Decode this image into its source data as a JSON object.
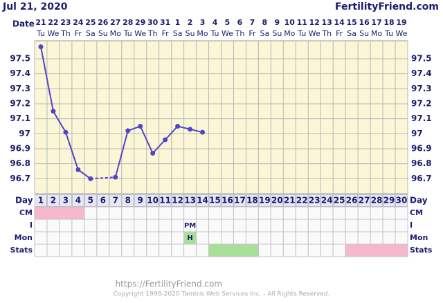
{
  "header": {
    "date": "Jul 21, 2020",
    "site": "FertilityFriend.com"
  },
  "chart_data": {
    "type": "line",
    "date_label": "Date",
    "categories": [
      "21",
      "22",
      "23",
      "24",
      "25",
      "26",
      "27",
      "28",
      "29",
      "30",
      "31",
      "1",
      "2",
      "3",
      "4",
      "5",
      "6",
      "7",
      "8",
      "9",
      "10",
      "11",
      "12",
      "13",
      "14",
      "15",
      "16",
      "17",
      "18",
      "19"
    ],
    "weekdays": [
      "Tu",
      "We",
      "Th",
      "Fr",
      "Sa",
      "Su",
      "Mo",
      "Tu",
      "We",
      "Th",
      "Fr",
      "Sa",
      "Su",
      "Mo",
      "Tu",
      "We",
      "Th",
      "Fr",
      "Sa",
      "Su",
      "Mo",
      "Tu",
      "We",
      "Th",
      "Fr",
      "Sa",
      "Su",
      "Mo",
      "Tu",
      "We"
    ],
    "series": [
      {
        "color": "#5243c9",
        "values": [
          97.58,
          97.15,
          97.01,
          96.76,
          96.7,
          null,
          96.71,
          97.02,
          97.05,
          96.87,
          96.96,
          97.05,
          97.03,
          97.01,
          null,
          null,
          null,
          null,
          null,
          null,
          null,
          null,
          null,
          null,
          null,
          null,
          null,
          null,
          null,
          null
        ]
      }
    ],
    "ylim": [
      96.6,
      97.62
    ],
    "yticks": [
      96.7,
      96.8,
      96.9,
      97.0,
      97.1,
      97.2,
      97.3,
      97.4,
      97.5
    ],
    "grid": true,
    "connect_gaps": true
  },
  "day_row": {
    "label": "Day",
    "days": [
      1,
      2,
      3,
      4,
      5,
      6,
      7,
      8,
      9,
      10,
      11,
      12,
      13,
      14,
      15,
      16,
      17,
      18,
      19,
      20,
      21,
      22,
      23,
      24,
      25,
      26,
      27,
      28,
      29,
      30
    ]
  },
  "rows": [
    {
      "label": "CM",
      "spans": [
        {
          "from": 1,
          "to": 4,
          "color": "#f5b8cc"
        }
      ],
      "texts": []
    },
    {
      "label": "I",
      "spans": [],
      "texts": [
        {
          "day": 13,
          "text": "PM"
        }
      ]
    },
    {
      "label": "Mon",
      "spans": [
        {
          "from": 13,
          "to": 13,
          "color": "#a8e09a"
        }
      ],
      "texts": [
        {
          "day": 13,
          "text": "H"
        }
      ]
    },
    {
      "label": "Stats",
      "spans": [
        {
          "from": 15,
          "to": 18,
          "color": "#a8e09a"
        },
        {
          "from": 26,
          "to": 30,
          "color": "#f5b8cc"
        }
      ],
      "texts": []
    }
  ],
  "footer": {
    "url": "https://FertilityFriend.com",
    "copyright": "Copyright 1998-2020 Tamtris Web Services Inc. - All Rights Reserved."
  }
}
